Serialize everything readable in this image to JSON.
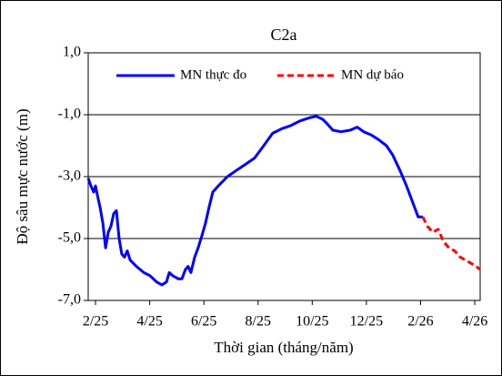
{
  "chart_data": {
    "type": "line",
    "title": "C2a",
    "x_label": "Thời gian  (tháng/năm)",
    "y_label": "Độ sâu mực nước (m)",
    "xlim": [
      -0.27,
      14.2
    ],
    "xticks": [
      {
        "value": 0,
        "label": "2/25"
      },
      {
        "value": 2,
        "label": "4/25"
      },
      {
        "value": 4,
        "label": "6/25"
      },
      {
        "value": 6,
        "label": "8/25"
      },
      {
        "value": 8,
        "label": "10/25"
      },
      {
        "value": 10,
        "label": "12/25"
      },
      {
        "value": 12,
        "label": "2/26"
      },
      {
        "value": 14,
        "label": "4/26"
      }
    ],
    "ylim": [
      -7,
      1
    ],
    "yticks": [
      {
        "value": -7,
        "label": "-7,0"
      },
      {
        "value": -5,
        "label": "-5,0"
      },
      {
        "value": -3,
        "label": "-3,0"
      },
      {
        "value": -1,
        "label": "-1,0"
      },
      {
        "value": 1,
        "label": "1,0"
      }
    ],
    "grid": true,
    "legend": "top",
    "series": [
      {
        "name": "MN thực đo",
        "color": "#0000ff",
        "dash": false,
        "x": [
          -0.27,
          -0.17,
          -0.07,
          0,
          0.07,
          0.17,
          0.27,
          0.37,
          0.47,
          0.57,
          0.67,
          0.77,
          0.87,
          0.97,
          1.07,
          1.17,
          1.28,
          1.51,
          1.78,
          2.01,
          2.25,
          2.45,
          2.62,
          2.72,
          2.85,
          3.05,
          3.19,
          3.32,
          3.42,
          3.52,
          3.66,
          3.79,
          3.93,
          4.06,
          4.19,
          4.33,
          4.53,
          4.87,
          5.2,
          5.54,
          5.87,
          6.21,
          6.54,
          6.88,
          7.21,
          7.55,
          7.89,
          8.15,
          8.39,
          8.56,
          8.76,
          9.06,
          9.4,
          9.66,
          9.9,
          10.17,
          10.44,
          10.74,
          10.97,
          11.24,
          11.48,
          11.74,
          11.91,
          12.08
        ],
        "values": [
          -3.05,
          -3.3,
          -3.5,
          -3.3,
          -3.6,
          -4.0,
          -4.5,
          -5.3,
          -4.8,
          -4.6,
          -4.2,
          -4.1,
          -5.0,
          -5.5,
          -5.6,
          -5.4,
          -5.7,
          -5.9,
          -6.1,
          -6.2,
          -6.4,
          -6.5,
          -6.4,
          -6.1,
          -6.2,
          -6.3,
          -6.3,
          -6.0,
          -5.9,
          -6.1,
          -5.6,
          -5.3,
          -4.9,
          -4.5,
          -4.0,
          -3.5,
          -3.3,
          -3.0,
          -2.8,
          -2.6,
          -2.4,
          -2.0,
          -1.6,
          -1.45,
          -1.35,
          -1.2,
          -1.1,
          -1.05,
          -1.15,
          -1.3,
          -1.5,
          -1.55,
          -1.5,
          -1.4,
          -1.55,
          -1.65,
          -1.8,
          -2.0,
          -2.3,
          -2.8,
          -3.3,
          -3.9,
          -4.3,
          -4.3
        ]
      },
      {
        "name": "MN dự báo",
        "color": "#ff0000",
        "dash": true,
        "x": [
          12.08,
          12.25,
          12.45,
          12.65,
          12.85,
          13.05,
          13.26,
          13.46,
          13.66,
          13.86,
          14.06,
          14.19
        ],
        "values": [
          -4.3,
          -4.6,
          -4.8,
          -4.7,
          -5.1,
          -5.3,
          -5.4,
          -5.6,
          -5.7,
          -5.8,
          -5.9,
          -6.0
        ]
      }
    ]
  }
}
